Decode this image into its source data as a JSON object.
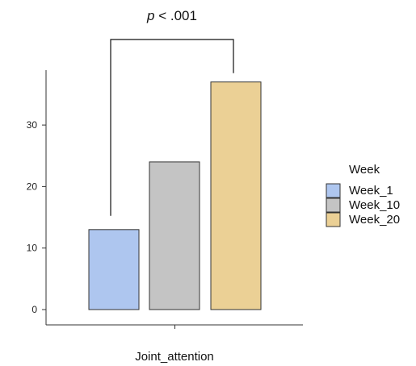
{
  "chart_data": {
    "type": "bar",
    "categories": [
      "Joint_attention"
    ],
    "series": [
      {
        "name": "Week_1",
        "values": [
          13
        ],
        "color": "#aec6ef"
      },
      {
        "name": "Week_10",
        "values": [
          24
        ],
        "color": "#c4c4c4"
      },
      {
        "name": "Week_20",
        "values": [
          37
        ],
        "color": "#ebd095"
      }
    ],
    "title": "",
    "xlabel": "Joint_attention",
    "ylabel": "",
    "ylim": [
      0,
      39
    ],
    "yticks": [
      0,
      10,
      20,
      30
    ],
    "grid": false,
    "legend": {
      "title": "Week",
      "placement": "right"
    },
    "annotations": [
      {
        "type": "significance-bracket",
        "from_series": "Week_1",
        "to_series": "Week_20",
        "p_symbol": "p",
        "p_relation": " < .001"
      }
    ],
    "bar_border_color": "#333333",
    "axis_color": "#333333"
  }
}
